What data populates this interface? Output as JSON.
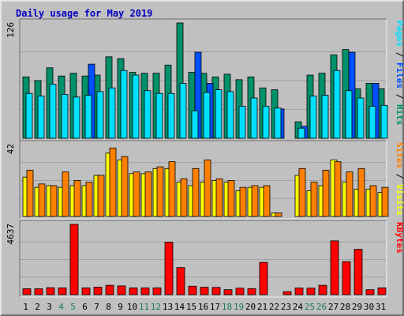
{
  "chart_data": {
    "type": "bar",
    "title": "Daily usage for May 2019",
    "categories": [
      "1",
      "2",
      "3",
      "4",
      "5",
      "6",
      "7",
      "8",
      "9",
      "10",
      "11",
      "12",
      "13",
      "14",
      "15",
      "16",
      "17",
      "18",
      "19",
      "20",
      "21",
      "22",
      "23",
      "24",
      "25",
      "26",
      "27",
      "28",
      "29",
      "30",
      "31"
    ],
    "weekend_days": [
      "4",
      "5",
      "11",
      "12",
      "18",
      "19",
      "25",
      "26"
    ],
    "panels": [
      {
        "id": "pages-files-hits",
        "max_label": "126",
        "ylim": [
          0,
          126
        ],
        "right_label": [
          {
            "text": "Pages",
            "color": "#00e0ff"
          },
          {
            "text": " / ",
            "color": "#000000"
          },
          {
            "text": "Files",
            "color": "#0050ff"
          },
          {
            "text": " / ",
            "color": "#000000"
          },
          {
            "text": "Hits",
            "color": "#00906a"
          }
        ],
        "series": [
          {
            "name": "Hits",
            "color": "#00906a",
            "values": [
              67,
              63,
              77,
              68,
              71,
              68,
              69,
              89,
              87,
              72,
              71,
              71,
              80,
              126,
              72,
              71,
              67,
              70,
              64,
              67,
              55,
              53,
              0,
              18,
              69,
              71,
              91,
              97,
              54,
              60,
              54
            ]
          },
          {
            "name": "Files",
            "color": "#0050ff",
            "values": [
              0,
              0,
              0,
              0,
              0,
              81,
              0,
              0,
              0,
              0,
              0,
              0,
              0,
              0,
              94,
              60,
              0,
              0,
              0,
              0,
              0,
              32,
              0,
              13,
              0,
              0,
              0,
              94,
              0,
              60,
              0
            ]
          },
          {
            "name": "Pages",
            "color": "#00e0ff",
            "values": [
              49,
              46,
              59,
              48,
              45,
              47,
              51,
              55,
              74,
              69,
              52,
              49,
              49,
              60,
              30,
              50,
              53,
              51,
              35,
              44,
              35,
              33,
              0,
              11,
              46,
              47,
              74,
              52,
              44,
              35,
              36
            ]
          }
        ]
      },
      {
        "id": "sites-visits",
        "max_label": "42",
        "ylim": [
          0,
          42
        ],
        "right_label": [
          {
            "text": "Sites",
            "color": "#ff8000"
          },
          {
            "text": " / ",
            "color": "#000000"
          },
          {
            "text": "Visits",
            "color": "#ffff00"
          }
        ],
        "series": [
          {
            "name": "Visits",
            "color": "#ffff00",
            "values": [
              23,
              17,
              18,
              17,
              18,
              18,
              24,
              37,
              33,
              25,
              25,
              28,
              28,
              20,
              18,
              20,
              21,
              20,
              15,
              17,
              17,
              2,
              0,
              24,
              15,
              18,
              33,
              20,
              16,
              16,
              14
            ]
          },
          {
            "name": "Sites",
            "color": "#ff8000",
            "values": [
              27,
              19,
              18,
              26,
              21,
              20,
              24,
              40,
              35,
              26,
              26,
              29,
              32,
              22,
              28,
              33,
              22,
              21,
              17,
              18,
              18,
              2,
              0,
              28,
              20,
              27,
              32,
              26,
              28,
              18,
              17
            ]
          }
        ]
      },
      {
        "id": "kbytes",
        "max_label": "4637",
        "ylim": [
          0,
          4637
        ],
        "right_label": [
          {
            "text": "KBytes",
            "color": "#ff0000"
          }
        ],
        "series": [
          {
            "name": "KBytes",
            "color": "#ff0000",
            "values": [
              390,
              390,
              460,
              450,
              4637,
              450,
              500,
              620,
              580,
              450,
              450,
              450,
              3460,
              1790,
              560,
              490,
              480,
              330,
              430,
              400,
              2130,
              0,
              200,
              440,
              430,
              620,
              3550,
              2180,
              2990,
              330,
              450
            ]
          }
        ]
      }
    ]
  }
}
